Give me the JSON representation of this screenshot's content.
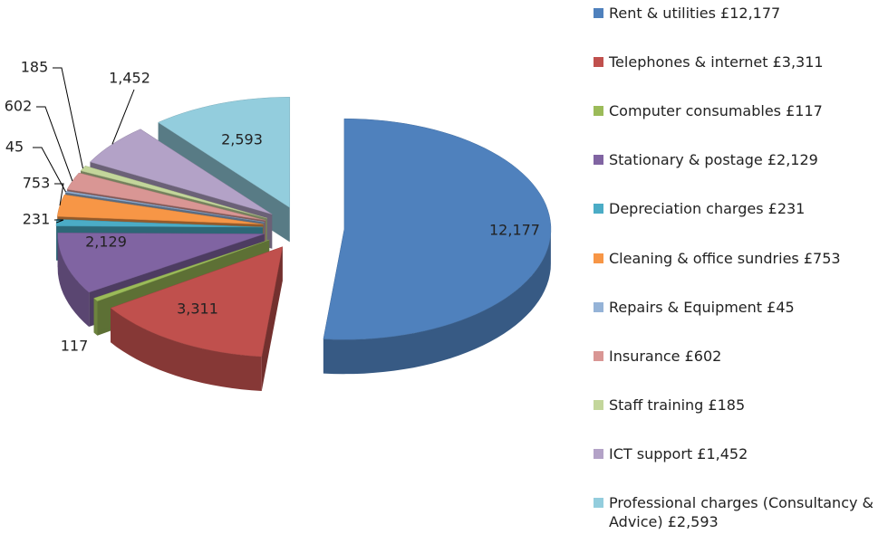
{
  "chart_data": {
    "type": "pie3d",
    "categories": [
      "Rent & utilities £12,177",
      "Telephones & internet £3,311",
      "Computer consumables £117",
      "Stationary & postage £2,129",
      "Depreciation charges £231",
      "Cleaning & office sundries £753",
      "Repairs & Equipment £45",
      "Insurance £602",
      "Staff training £185",
      "ICT support £1,452",
      "Professional charges (Consultancy & Advice) £2,593"
    ],
    "values": [
      12177,
      3311,
      117,
      2129,
      231,
      753,
      45,
      602,
      185,
      1452,
      2593
    ],
    "value_labels": [
      "12,177",
      "3,311",
      "117",
      "2,129",
      "231",
      "753",
      "45",
      "602",
      "185",
      "1,452",
      "2,593"
    ],
    "colors": [
      "#4f81bd",
      "#c0504d",
      "#9bbb59",
      "#8064a2",
      "#4bacc6",
      "#f79646",
      "#95b3d7",
      "#d99694",
      "#c3d69b",
      "#b3a2c7",
      "#93cddd"
    ],
    "legend": "right"
  }
}
